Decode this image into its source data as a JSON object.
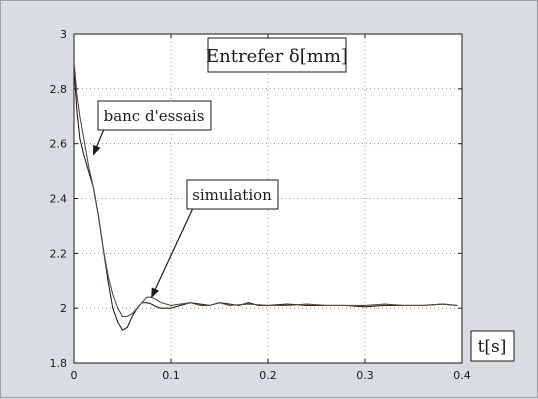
{
  "chart_data": {
    "type": "line",
    "title": "Entrefer δ[mm]",
    "xlabel": "t[s]",
    "ylabel": "",
    "xlim": [
      0,
      0.4
    ],
    "ylim": [
      1.8,
      3.0
    ],
    "x_ticks": [
      "0",
      "0.1",
      "0.2",
      "0.3",
      "0.4"
    ],
    "y_ticks": [
      "1.8",
      "2",
      "2.2",
      "2.4",
      "2.6",
      "2.8",
      "3"
    ],
    "grid": true,
    "series": [
      {
        "name": "banc d'essais",
        "color": "#2a1f1a",
        "x": [
          0,
          0.003,
          0.006,
          0.01,
          0.015,
          0.02,
          0.025,
          0.03,
          0.035,
          0.04,
          0.045,
          0.05,
          0.055,
          0.06,
          0.065,
          0.07,
          0.075,
          0.08,
          0.085,
          0.09,
          0.1,
          0.11,
          0.12,
          0.13,
          0.14,
          0.15,
          0.16,
          0.17,
          0.18,
          0.19,
          0.2,
          0.22,
          0.24,
          0.26,
          0.28,
          0.3,
          0.32,
          0.34,
          0.36,
          0.38,
          0.395
        ],
        "y": [
          2.88,
          2.72,
          2.62,
          2.56,
          2.5,
          2.44,
          2.34,
          2.22,
          2.1,
          2.0,
          1.95,
          1.92,
          1.93,
          1.97,
          2.0,
          2.02,
          2.02,
          2.015,
          2.005,
          2.0,
          2.0,
          2.01,
          2.02,
          2.015,
          2.01,
          2.02,
          2.015,
          2.01,
          2.02,
          2.01,
          2.01,
          2.015,
          2.01,
          2.01,
          2.01,
          2.005,
          2.01,
          2.01,
          2.01,
          2.015,
          2.01
        ]
      },
      {
        "name": "simulation",
        "color": "#5a4a3a",
        "x": [
          0,
          0.003,
          0.006,
          0.01,
          0.015,
          0.02,
          0.025,
          0.03,
          0.035,
          0.04,
          0.045,
          0.05,
          0.055,
          0.06,
          0.065,
          0.07,
          0.075,
          0.08,
          0.085,
          0.09,
          0.1,
          0.11,
          0.12,
          0.13,
          0.14,
          0.15,
          0.16,
          0.18,
          0.2,
          0.22,
          0.24,
          0.26,
          0.28,
          0.3,
          0.32,
          0.34,
          0.36,
          0.38,
          0.395
        ],
        "y": [
          2.9,
          2.78,
          2.7,
          2.62,
          2.52,
          2.44,
          2.34,
          2.22,
          2.12,
          2.05,
          2.0,
          1.97,
          1.97,
          1.98,
          2.0,
          2.02,
          2.04,
          2.04,
          2.03,
          2.02,
          2.01,
          2.015,
          2.02,
          2.01,
          2.01,
          2.02,
          2.01,
          2.015,
          2.01,
          2.01,
          2.015,
          2.01,
          2.01,
          2.01,
          2.015,
          2.01,
          2.01,
          2.015,
          2.01
        ]
      }
    ],
    "annotations": [
      {
        "text": "banc d'essais",
        "target": [
          0.02,
          2.56
        ]
      },
      {
        "text": "simulation",
        "target": [
          0.08,
          2.04
        ]
      }
    ]
  }
}
